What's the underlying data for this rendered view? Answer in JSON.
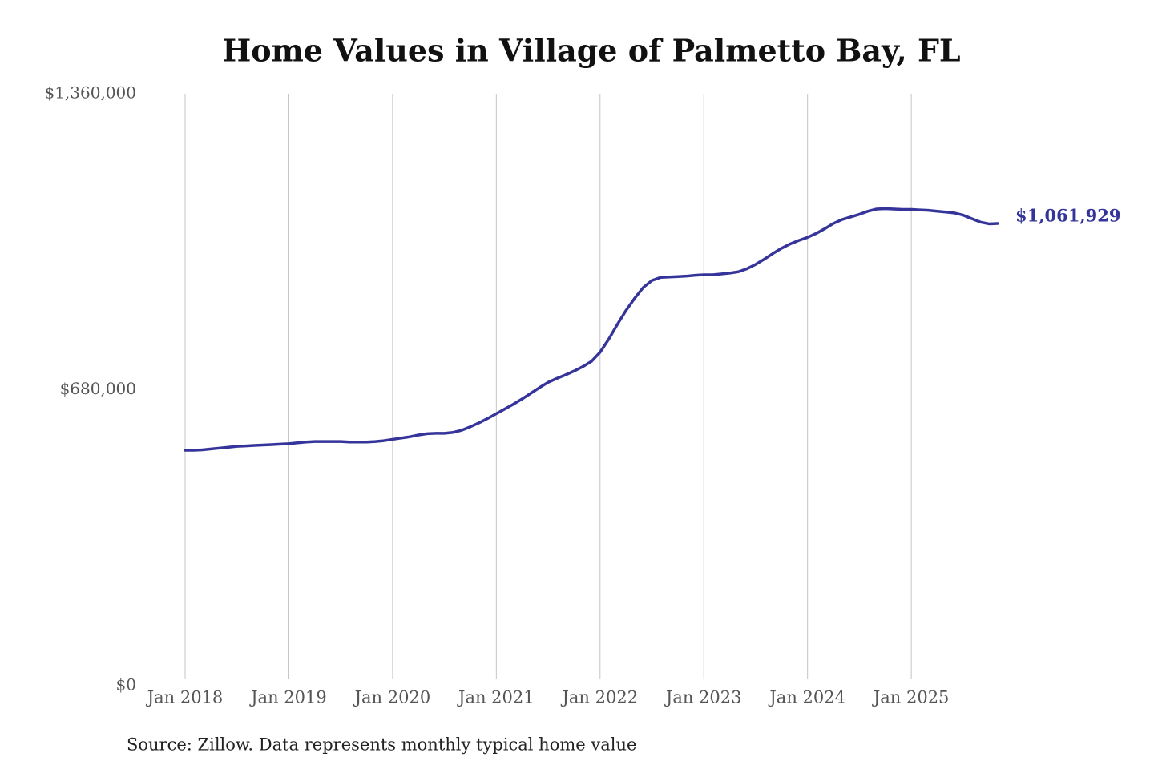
{
  "chart_data": {
    "type": "line",
    "title": "Home Values in Village of Palmetto Bay, FL",
    "source": "Source: Zillow. Data represents monthly typical home value",
    "color": "#35349a",
    "x": [
      "2018-01",
      "2018-02",
      "2018-03",
      "2018-04",
      "2018-05",
      "2018-06",
      "2018-07",
      "2018-08",
      "2018-09",
      "2018-10",
      "2018-11",
      "2018-12",
      "2019-01",
      "2019-02",
      "2019-03",
      "2019-04",
      "2019-05",
      "2019-06",
      "2019-07",
      "2019-08",
      "2019-09",
      "2019-10",
      "2019-11",
      "2019-12",
      "2020-01",
      "2020-02",
      "2020-03",
      "2020-04",
      "2020-05",
      "2020-06",
      "2020-07",
      "2020-08",
      "2020-09",
      "2020-10",
      "2020-11",
      "2020-12",
      "2021-01",
      "2021-02",
      "2021-03",
      "2021-04",
      "2021-05",
      "2021-06",
      "2021-07",
      "2021-08",
      "2021-09",
      "2021-10",
      "2021-11",
      "2021-12",
      "2022-01",
      "2022-02",
      "2022-03",
      "2022-04",
      "2022-05",
      "2022-06",
      "2022-07",
      "2022-08",
      "2022-09",
      "2022-10",
      "2022-11",
      "2022-12",
      "2023-01",
      "2023-02",
      "2023-03",
      "2023-04",
      "2023-05",
      "2023-06",
      "2023-07",
      "2023-08",
      "2023-09",
      "2023-10",
      "2023-11",
      "2023-12",
      "2024-01",
      "2024-02",
      "2024-03",
      "2024-04",
      "2024-05",
      "2024-06",
      "2024-07",
      "2024-08",
      "2024-09",
      "2024-10",
      "2024-11",
      "2024-12",
      "2025-01",
      "2025-02",
      "2025-03",
      "2025-04",
      "2025-05",
      "2025-06",
      "2025-07",
      "2025-08",
      "2025-09",
      "2025-10",
      "2025-11"
    ],
    "values": [
      541000,
      541000,
      542000,
      544000,
      546000,
      548000,
      550000,
      551000,
      552000,
      553000,
      554000,
      555000,
      556000,
      558000,
      560000,
      561000,
      561000,
      561000,
      561000,
      560000,
      560000,
      560000,
      561000,
      563000,
      566000,
      569000,
      572000,
      576000,
      579000,
      580000,
      580000,
      582000,
      587000,
      595000,
      604000,
      614000,
      625000,
      636000,
      647000,
      659000,
      672000,
      685000,
      697000,
      706000,
      714000,
      723000,
      733000,
      745000,
      766000,
      796000,
      830000,
      862000,
      890000,
      915000,
      931000,
      938000,
      939000,
      940000,
      941000,
      943000,
      944000,
      944000,
      946000,
      948000,
      951000,
      958000,
      968000,
      980000,
      993000,
      1005000,
      1015000,
      1023000,
      1030000,
      1039000,
      1050000,
      1062000,
      1071000,
      1077000,
      1083000,
      1090000,
      1095000,
      1096000,
      1095000,
      1094000,
      1094000,
      1093000,
      1092000,
      1090000,
      1088000,
      1086000,
      1081000,
      1073000,
      1065000,
      1061000,
      1061929
    ],
    "value_labels": [
      null,
      null,
      null,
      null,
      null,
      null,
      null,
      null,
      null,
      null,
      null,
      null,
      null,
      null,
      null,
      null,
      null,
      null,
      null,
      null,
      null,
      null,
      null,
      null,
      null,
      null,
      null,
      null,
      null,
      null,
      null,
      null,
      null,
      null,
      null,
      null,
      null,
      null,
      null,
      null,
      null,
      null,
      null,
      null,
      null,
      null,
      null,
      null,
      null,
      null,
      null,
      null,
      null,
      null,
      null,
      null,
      null,
      null,
      null,
      null,
      null,
      null,
      null,
      null,
      null,
      null,
      null,
      null,
      null,
      null,
      null,
      null,
      null,
      null,
      null,
      null,
      null,
      null,
      null,
      null,
      null,
      null,
      null,
      null,
      null,
      null,
      null,
      null,
      null,
      null,
      null,
      null,
      null,
      null,
      "$1,061,929"
    ],
    "xlim": [
      "2018-01",
      "2025-11"
    ],
    "xticks": [
      {
        "value": "2018-01",
        "label": "Jan 2018"
      },
      {
        "value": "2019-01",
        "label": "Jan 2019"
      },
      {
        "value": "2020-01",
        "label": "Jan 2020"
      },
      {
        "value": "2021-01",
        "label": "Jan 2021"
      },
      {
        "value": "2022-01",
        "label": "Jan 2022"
      },
      {
        "value": "2023-01",
        "label": "Jan 2023"
      },
      {
        "value": "2024-01",
        "label": "Jan 2024"
      },
      {
        "value": "2025-01",
        "label": "Jan 2025"
      }
    ],
    "ylim": [
      0,
      1360000
    ],
    "yticks": [
      {
        "value": 0,
        "label": "$0"
      },
      {
        "value": 680000,
        "label": "$680,000"
      },
      {
        "value": 1360000,
        "label": "$1,360,000"
      }
    ],
    "grid": true
  }
}
